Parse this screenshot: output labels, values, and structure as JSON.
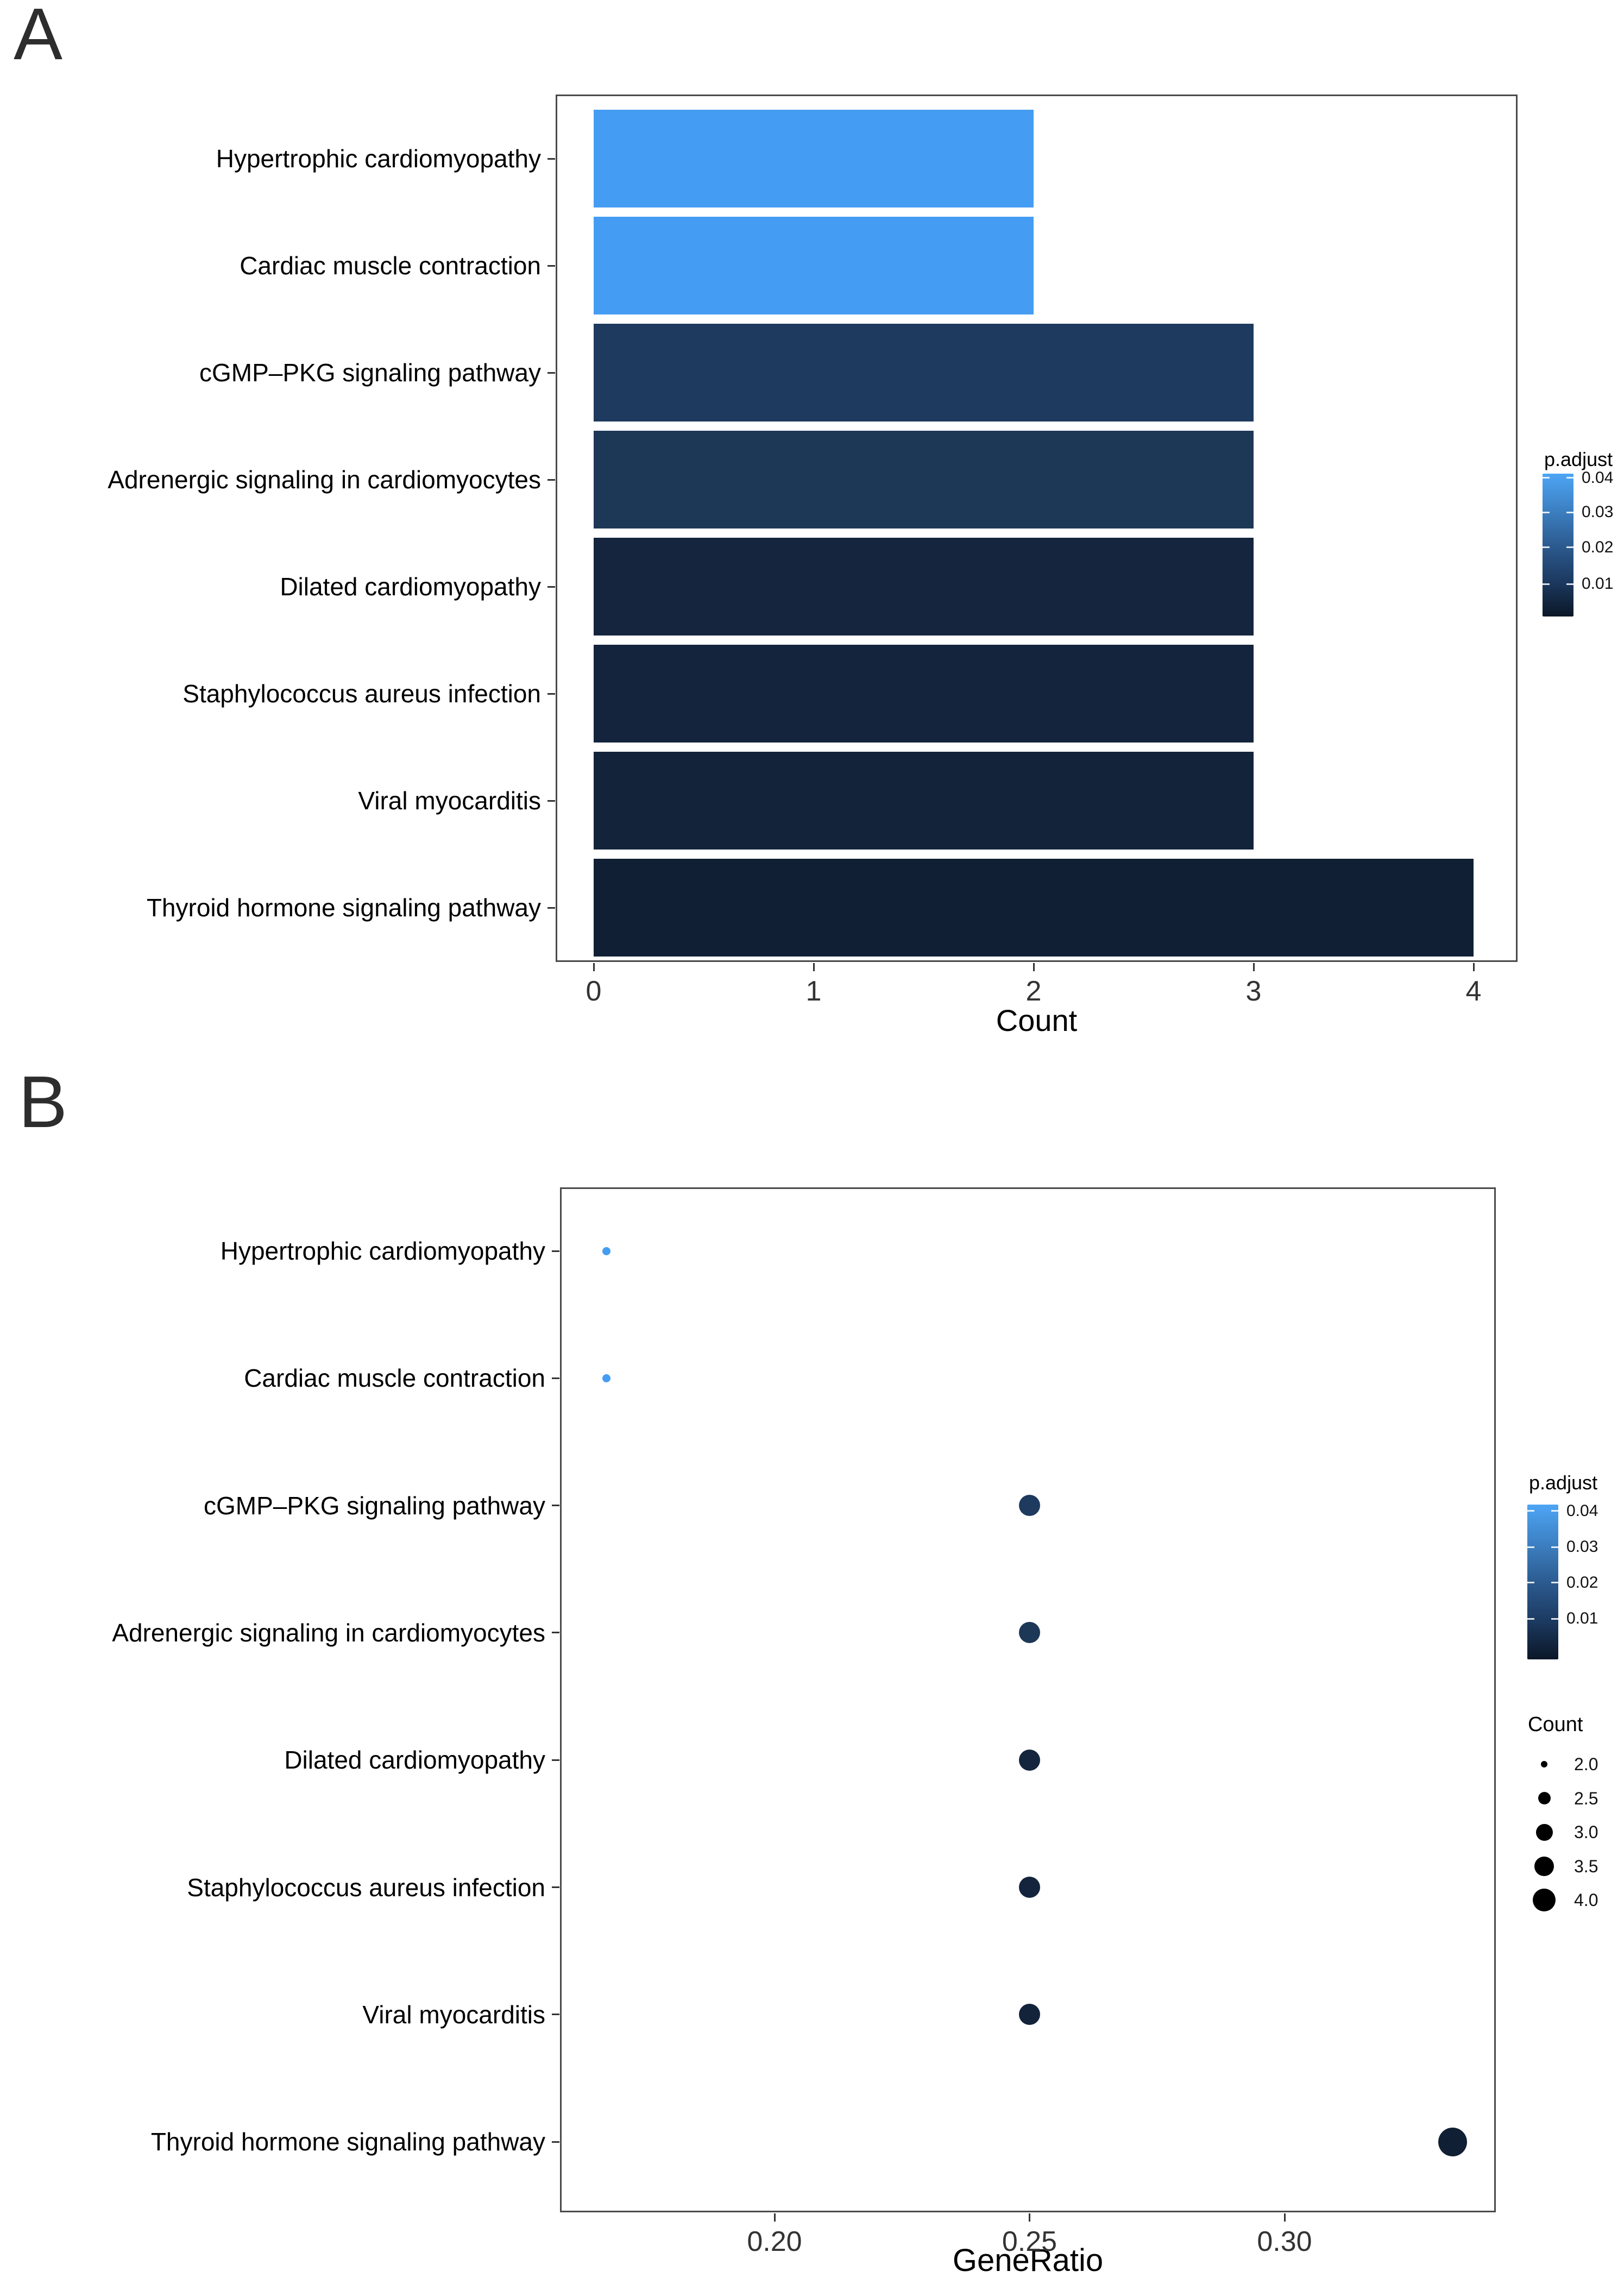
{
  "figure": {
    "panel_a_label": "A",
    "panel_b_label": "B"
  },
  "chart_data": [
    {
      "type": "bar",
      "panel": "A",
      "orientation": "horizontal",
      "categories": [
        "Hypertrophic cardiomyopathy",
        "Cardiac muscle contraction",
        "cGMP–PKG signaling pathway",
        "Adrenergic signaling in cardiomyocytes",
        "Dilated cardiomyopathy",
        "Staphylococcus aureus infection",
        "Viral myocarditis",
        "Thyroid hormone signaling pathway"
      ],
      "values": [
        2,
        2,
        3,
        3,
        3,
        3,
        3,
        4
      ],
      "bar_colors": [
        "#459df3",
        "#459df3",
        "#1e3a5e",
        "#1d3756",
        "#14253d",
        "#13243c",
        "#12233a",
        "#101f33"
      ],
      "xlabel": "Count",
      "x_ticks": [
        0,
        1,
        2,
        3,
        4
      ],
      "xlim": [
        0,
        4.3
      ],
      "grid": false,
      "legend_padjust": {
        "title": "p.adjust",
        "tick_labels": [
          "0.04",
          "0.03",
          "0.02",
          "0.01"
        ],
        "gradient_top_color": "#4da5f5",
        "gradient_bottom_color": "#0b1727",
        "position": "right"
      }
    },
    {
      "type": "scatter",
      "panel": "B",
      "categories": [
        "Hypertrophic cardiomyopathy",
        "Cardiac muscle contraction",
        "cGMP–PKG signaling pathway",
        "Adrenergic signaling in cardiomyocytes",
        "Dilated cardiomyopathy",
        "Staphylococcus aureus infection",
        "Viral myocarditis",
        "Thyroid hormone signaling pathway"
      ],
      "x": [
        0.167,
        0.167,
        0.25,
        0.25,
        0.25,
        0.25,
        0.25,
        0.333
      ],
      "sizes_count": [
        2,
        2,
        3,
        3,
        3,
        3,
        3,
        4
      ],
      "dot_colors": [
        "#459df3",
        "#459df3",
        "#1e3a5e",
        "#1d3756",
        "#14253d",
        "#13243c",
        "#12233a",
        "#101f33"
      ],
      "xlabel": "GeneRatio",
      "x_tick_labels": [
        "0.20",
        "0.25",
        "0.30"
      ],
      "x_tick_values": [
        0.2,
        0.25,
        0.3
      ],
      "xlim": [
        0.162,
        0.342
      ],
      "grid": false,
      "legend_padjust": {
        "title": "p.adjust",
        "tick_labels": [
          "0.04",
          "0.03",
          "0.02",
          "0.01"
        ],
        "gradient_top_color": "#4da5f5",
        "gradient_bottom_color": "#0b1727",
        "position": "right"
      },
      "legend_count": {
        "title": "Count",
        "item_labels": [
          "2.0",
          "2.5",
          "3.0",
          "3.5",
          "4.0"
        ],
        "item_values": [
          2.0,
          2.5,
          3.0,
          3.5,
          4.0
        ],
        "position": "right"
      }
    }
  ]
}
